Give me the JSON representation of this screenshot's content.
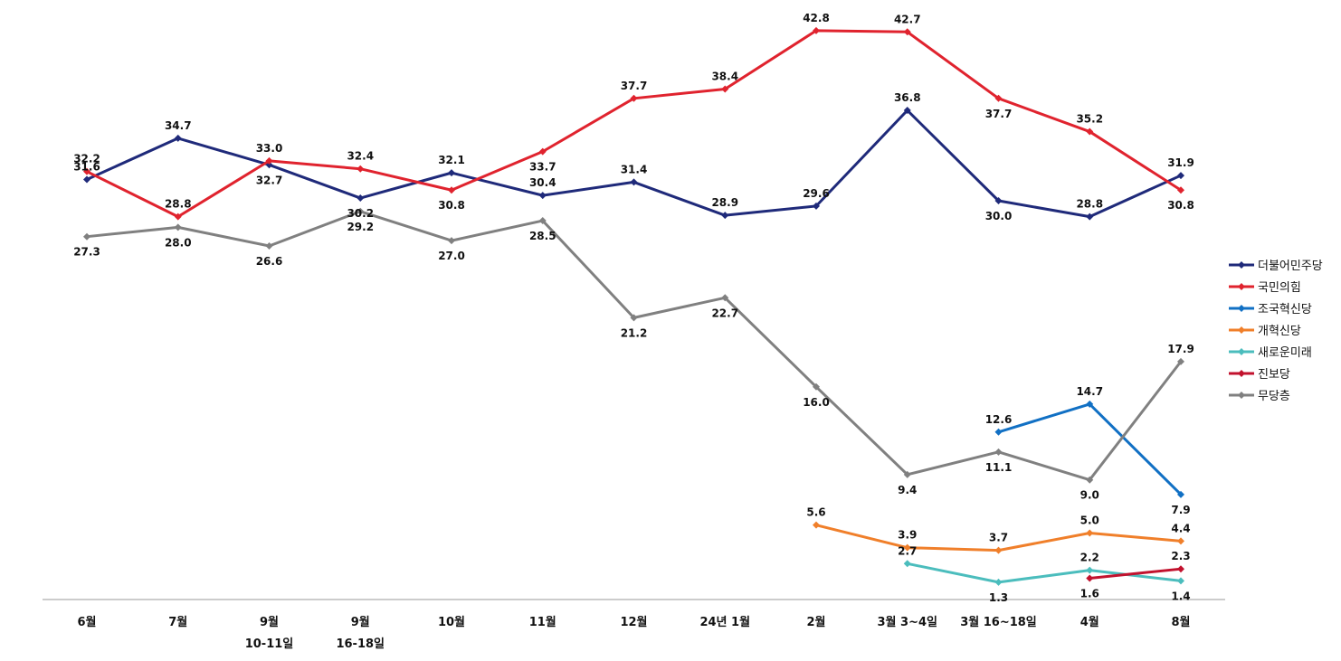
{
  "chart_data": {
    "type": "line",
    "title": "",
    "xlabel": "",
    "ylabel": "",
    "ylim": [
      0,
      46
    ],
    "grid": false,
    "legend": "right",
    "x": [
      [
        "6월"
      ],
      [
        "7월"
      ],
      [
        "9월",
        "10-11일"
      ],
      [
        "9월",
        "16-18일"
      ],
      [
        "10월"
      ],
      [
        "11월"
      ],
      [
        "12월"
      ],
      [
        "24년 1월"
      ],
      [
        "2월"
      ],
      [
        "3월 3~4일"
      ],
      [
        "3월 16~18일"
      ],
      [
        "4월"
      ],
      [
        "8월"
      ]
    ],
    "series": [
      {
        "name": "더불어민주당",
        "color": "#1f2a7a",
        "values": [
          31.6,
          34.7,
          32.7,
          30.2,
          32.1,
          30.4,
          31.4,
          28.9,
          29.6,
          36.8,
          30.0,
          28.8,
          31.9
        ]
      },
      {
        "name": "국민의힘",
        "color": "#e0232e",
        "values": [
          32.2,
          28.8,
          33.0,
          32.4,
          30.8,
          33.7,
          37.7,
          38.4,
          42.8,
          42.7,
          37.7,
          35.2,
          30.8
        ]
      },
      {
        "name": "조국혁신당",
        "color": "#1170c4",
        "values": [
          null,
          null,
          null,
          null,
          null,
          null,
          null,
          null,
          null,
          null,
          12.6,
          14.7,
          7.9
        ]
      },
      {
        "name": "개혁신당",
        "color": "#f07f2a",
        "values": [
          null,
          null,
          null,
          null,
          null,
          null,
          null,
          null,
          5.6,
          3.9,
          3.7,
          5.0,
          4.4
        ]
      },
      {
        "name": "새로운미래",
        "color": "#4bbdbd",
        "values": [
          null,
          null,
          null,
          null,
          null,
          null,
          null,
          null,
          null,
          2.7,
          1.3,
          2.2,
          1.4
        ]
      },
      {
        "name": "진보당",
        "color": "#c2122e",
        "values": [
          null,
          null,
          null,
          null,
          null,
          null,
          null,
          null,
          null,
          null,
          null,
          1.6,
          2.3
        ]
      },
      {
        "name": "무당층",
        "color": "#808080",
        "values": [
          27.3,
          28.0,
          26.6,
          29.2,
          27.0,
          28.5,
          21.2,
          22.7,
          16.0,
          9.4,
          11.1,
          9.0,
          17.9
        ]
      }
    ]
  }
}
